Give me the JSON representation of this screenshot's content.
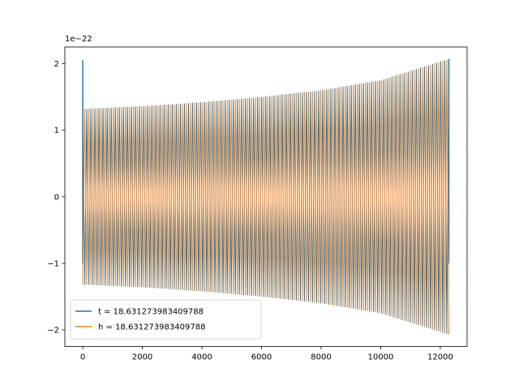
{
  "chart_data": {
    "type": "line",
    "title": "",
    "xlabel": "",
    "ylabel": "",
    "xlim": [
      -600,
      12900
    ],
    "ylim": [
      -2.25,
      2.25
    ],
    "y_offset_label": "1e−22",
    "x_ticks": [
      0,
      2000,
      4000,
      6000,
      8000,
      10000,
      12000
    ],
    "x_tick_labels": [
      "0",
      "2000",
      "4000",
      "6000",
      "8000",
      "10000",
      "12000"
    ],
    "y_ticks": [
      2,
      1,
      0,
      -1,
      -2
    ],
    "y_tick_labels": [
      "2",
      "1",
      "0",
      "−1",
      "−2"
    ],
    "grid": false,
    "legend_position": "lower-left",
    "x_range": [
      0,
      12288
    ],
    "series": [
      {
        "name": "t = 18.631273983409788",
        "color": "#1f77b4",
        "envelope": {
          "x": [
            0,
            2000,
            4000,
            6000,
            8000,
            10000,
            12288
          ],
          "y_abs": [
            1.32,
            1.36,
            1.42,
            1.5,
            1.6,
            1.75,
            2.07
          ]
        },
        "start_spike": {
          "x": 0,
          "max": 2.05,
          "min": -1.0
        },
        "end_spike": {
          "x": 12288,
          "max": 2.07,
          "min": -1.0
        }
      },
      {
        "name": "h = 18.631273983409788",
        "color": "#ff7f0e",
        "envelope": {
          "x": [
            0,
            2000,
            4000,
            6000,
            8000,
            10000,
            12288
          ],
          "y_abs": [
            1.32,
            1.36,
            1.42,
            1.5,
            1.6,
            1.75,
            2.07
          ]
        }
      }
    ]
  }
}
